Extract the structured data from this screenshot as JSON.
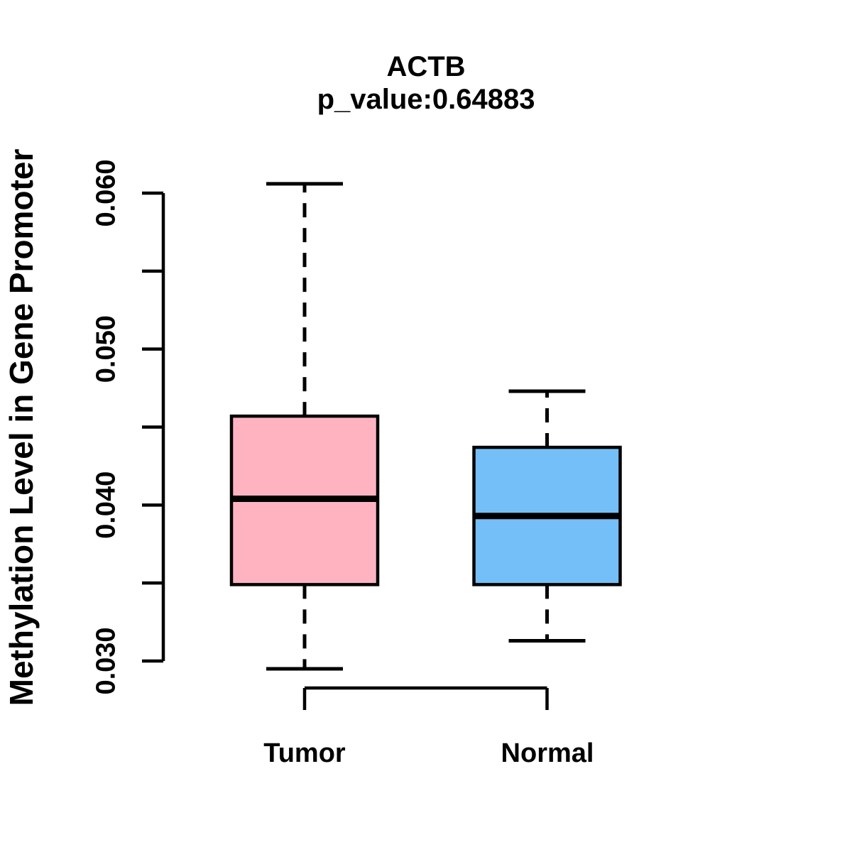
{
  "chart_data": {
    "type": "boxplot",
    "title": "ACTB",
    "subtitle": "p_value:0.64883",
    "ylabel": "Methylation Level in Gene Promoter",
    "xlabel": "",
    "categories": [
      "Tumor",
      "Normal"
    ],
    "series": [
      {
        "name": "Tumor",
        "color": "#FFB3C1",
        "min": 0.0295,
        "q1": 0.0349,
        "median": 0.0404,
        "q3": 0.0457,
        "max": 0.0606
      },
      {
        "name": "Normal",
        "color": "#74BFF7",
        "min": 0.0313,
        "q1": 0.0349,
        "median": 0.0393,
        "q3": 0.0437,
        "max": 0.0473
      }
    ],
    "ylim": [
      0.03,
      0.06
    ],
    "y_ticks": {
      "values": [
        0.03,
        0.035,
        0.04,
        0.045,
        0.05,
        0.055,
        0.06
      ],
      "labels": [
        "0.030",
        "",
        "0.040",
        "",
        "0.050",
        "",
        "0.060"
      ]
    },
    "grid": false,
    "legend": "none",
    "stroke_color": "#000000",
    "background_color": "#FFFFFF"
  }
}
